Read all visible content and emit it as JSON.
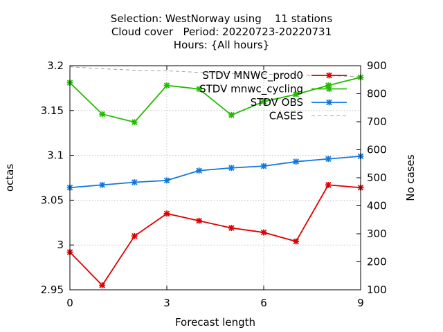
{
  "title_lines": [
    "Selection: WestNorway using    11 stations",
    "Cloud cover   Period: 20220723-20220731",
    "Hours: {All hours}"
  ],
  "chart_data": {
    "type": "line",
    "xlabel": "Forecast length",
    "ylabel": "octas",
    "y2label": "No cases",
    "x": [
      0,
      1,
      2,
      3,
      4,
      5,
      6,
      7,
      8,
      9
    ],
    "xlim": [
      0,
      9
    ],
    "xticks": [
      0,
      3,
      6,
      9
    ],
    "ylim": [
      2.95,
      3.2
    ],
    "yticks": [
      2.95,
      3,
      3.05,
      3.1,
      3.15,
      3.2
    ],
    "ytick_labels": [
      "2.95",
      "3",
      "3.05",
      "3.1",
      "3.15",
      "3.2"
    ],
    "y2lim": [
      100,
      900
    ],
    "y2ticks": [
      100,
      200,
      300,
      400,
      500,
      600,
      700,
      800,
      900
    ],
    "grid": true,
    "legend_position": "top-right",
    "series": [
      {
        "name": "STDV MNWC_prod0",
        "color": "#dd0000",
        "axis": "y",
        "values": [
          2.992,
          2.955,
          3.01,
          3.035,
          3.027,
          3.019,
          3.014,
          3.004,
          3.067,
          3.064
        ]
      },
      {
        "name": "STDV mnwc_cycling",
        "color": "#22bb00",
        "axis": "y",
        "values": [
          3.181,
          3.146,
          3.137,
          3.178,
          3.174,
          3.145,
          3.16,
          3.168,
          3.178,
          3.187
        ]
      },
      {
        "name": "STDV OBS",
        "color": "#1177dd",
        "axis": "y",
        "values": [
          3.064,
          3.067,
          3.07,
          3.072,
          3.083,
          3.086,
          3.088,
          3.093,
          3.096,
          3.099
        ]
      },
      {
        "name": "CASES",
        "color": "#a0a0a0",
        "axis": "y2",
        "dashed": true,
        "values": [
          896,
          889,
          884,
          882,
          876,
          872,
          870,
          866,
          864,
          861
        ]
      }
    ]
  }
}
